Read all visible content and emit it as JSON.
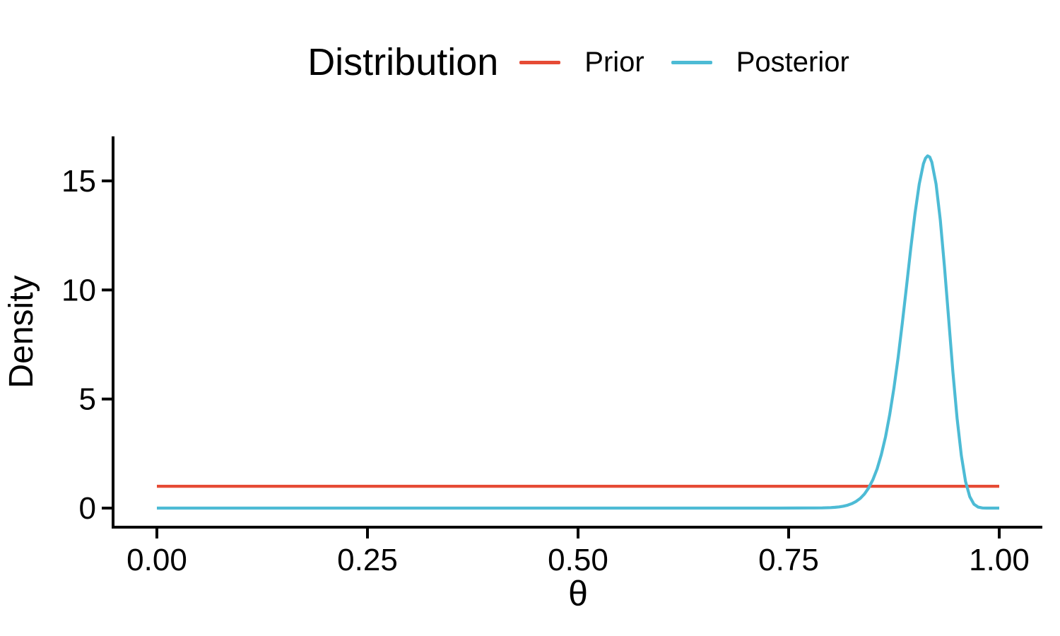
{
  "figure": {
    "background": "#ffffff",
    "text_color": "#000000",
    "axis_color": "#000000"
  },
  "legend": {
    "title": "Distribution",
    "items": [
      {
        "label": "Prior",
        "color": "#E64B35"
      },
      {
        "label": "Posterior",
        "color": "#4DBBD5"
      }
    ]
  },
  "chart_data": {
    "type": "line",
    "title": "",
    "xlabel": "θ",
    "ylabel": "Density",
    "xlim": [
      0,
      1
    ],
    "ylim": [
      0,
      17
    ],
    "x_expansion": 0.05,
    "grid": false,
    "legend_position": "top",
    "x_ticks": [
      {
        "value": 0.0,
        "label": "0.00"
      },
      {
        "value": 0.25,
        "label": "0.25"
      },
      {
        "value": 0.5,
        "label": "0.50"
      },
      {
        "value": 0.75,
        "label": "0.75"
      },
      {
        "value": 1.0,
        "label": "1.00"
      }
    ],
    "y_ticks": [
      {
        "value": 0,
        "label": "0"
      },
      {
        "value": 5,
        "label": "5"
      },
      {
        "value": 10,
        "label": "10"
      },
      {
        "value": 15,
        "label": "15"
      }
    ],
    "series": [
      {
        "name": "Prior",
        "color": "#E64B35",
        "description": "Uniform prior, constant density 1 on [0,1]",
        "points": [
          [
            0,
            1
          ],
          [
            1,
            1
          ]
        ]
      },
      {
        "name": "Posterior",
        "color": "#4DBBD5",
        "description": "Beta-shaped posterior, mode ~0.915, peak density ~16.2",
        "points": [
          [
            0,
            0
          ],
          [
            0.05,
            0
          ],
          [
            0.1,
            0
          ],
          [
            0.15,
            0
          ],
          [
            0.2,
            0
          ],
          [
            0.25,
            0
          ],
          [
            0.3,
            0
          ],
          [
            0.35,
            0
          ],
          [
            0.4,
            0
          ],
          [
            0.45,
            0
          ],
          [
            0.5,
            0
          ],
          [
            0.55,
            0
          ],
          [
            0.6,
            0
          ],
          [
            0.65,
            0
          ],
          [
            0.7,
            0
          ],
          [
            0.72,
            0
          ],
          [
            0.74,
            0.001
          ],
          [
            0.76,
            0.002
          ],
          [
            0.78,
            0.006
          ],
          [
            0.79,
            0.009
          ],
          [
            0.8,
            0.023
          ],
          [
            0.805,
            0.036
          ],
          [
            0.81,
            0.056
          ],
          [
            0.815,
            0.088
          ],
          [
            0.82,
            0.134
          ],
          [
            0.825,
            0.203
          ],
          [
            0.83,
            0.303
          ],
          [
            0.835,
            0.445
          ],
          [
            0.84,
            0.645
          ],
          [
            0.845,
            0.923
          ],
          [
            0.85,
            1.298
          ],
          [
            0.855,
            1.798
          ],
          [
            0.86,
            2.445
          ],
          [
            0.865,
            3.266
          ],
          [
            0.87,
            4.282
          ],
          [
            0.875,
            5.501
          ],
          [
            0.88,
            6.917
          ],
          [
            0.885,
            8.499
          ],
          [
            0.89,
            10.19
          ],
          [
            0.895,
            11.9
          ],
          [
            0.9,
            13.5
          ],
          [
            0.905,
            14.85
          ],
          [
            0.91,
            15.78
          ],
          [
            0.9125,
            16.04
          ],
          [
            0.915,
            16.15
          ],
          [
            0.9175,
            16.09
          ],
          [
            0.92,
            15.86
          ],
          [
            0.925,
            14.86
          ],
          [
            0.93,
            13.21
          ],
          [
            0.935,
            11.07
          ],
          [
            0.94,
            8.657
          ],
          [
            0.945,
            6.249
          ],
          [
            0.95,
            4.105
          ],
          [
            0.955,
            2.406
          ],
          [
            0.96,
            1.226
          ],
          [
            0.965,
            0.524
          ],
          [
            0.97,
            0.178
          ],
          [
            0.975,
            0.044
          ],
          [
            0.98,
            0.007
          ],
          [
            0.985,
            0.001
          ],
          [
            0.99,
            0
          ],
          [
            1,
            0
          ]
        ]
      }
    ]
  }
}
